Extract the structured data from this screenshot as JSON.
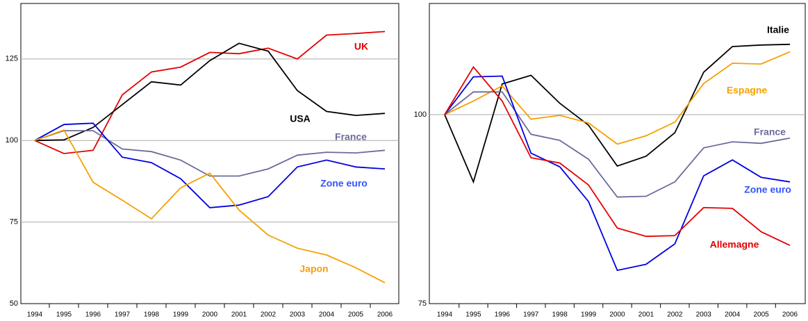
{
  "chart_data": [
    {
      "type": "line",
      "categories": [
        "1994",
        "1995",
        "1996",
        "1997",
        "1998",
        "1999",
        "2000",
        "2001",
        "2002",
        "2003",
        "2004",
        "2005",
        "2006"
      ],
      "ylim": [
        50,
        142
      ],
      "yticks": [
        50,
        75,
        100,
        125
      ],
      "grid": true,
      "series": [
        {
          "name": "UK",
          "color": "#e30000",
          "values": [
            100,
            96,
            97,
            114,
            121,
            122.5,
            127,
            126.6,
            128.3,
            125,
            132.3,
            132.8,
            133.4
          ]
        },
        {
          "name": "USA",
          "color": "#000000",
          "values": [
            100,
            100.2,
            104,
            111,
            118,
            117,
            124.5,
            129.8,
            127.4,
            115.3,
            108.9,
            107.7,
            108.3
          ]
        },
        {
          "name": "France",
          "color": "#6b6b9b",
          "values": [
            100,
            103,
            103,
            97.4,
            96.6,
            94,
            89.1,
            89.1,
            91.3,
            95.5,
            96.4,
            96.2,
            97
          ]
        },
        {
          "name": "Zone euro",
          "color": "#0000e0",
          "values": [
            100,
            104.9,
            105.3,
            94.9,
            93.2,
            88.3,
            79.4,
            80.2,
            82.8,
            91.9,
            94,
            91.9,
            91.3
          ]
        },
        {
          "name": "Japon",
          "color": "#f5a000",
          "values": [
            100,
            103.2,
            87.2,
            81.7,
            76,
            85.5,
            90,
            78.7,
            71,
            67,
            64.9,
            61,
            56.4
          ]
        }
      ]
    },
    {
      "type": "line",
      "categories": [
        "1994",
        "1995",
        "1996",
        "1997",
        "1998",
        "1999",
        "2000",
        "2001",
        "2002",
        "2003",
        "2004",
        "2005",
        "2006"
      ],
      "ylim": [
        75,
        114.7
      ],
      "yticks": [
        75,
        100
      ],
      "grid": true,
      "series": [
        {
          "name": "Italie",
          "color": "#000000",
          "values": [
            100,
            91.1,
            104.05,
            105.2,
            101.5,
            98.6,
            93.2,
            94.5,
            97.6,
            105.6,
            109,
            109.2,
            109.3
          ]
        },
        {
          "name": "Espagne",
          "color": "#f5a000",
          "values": [
            100,
            101.8,
            103.8,
            99.4,
            99.9,
            98.9,
            96.1,
            97.2,
            99,
            104.1,
            106.8,
            106.7,
            108.3
          ]
        },
        {
          "name": "France",
          "color": "#6b6b9b",
          "values": [
            100,
            103,
            103,
            97.4,
            96.6,
            94.1,
            89.1,
            89.2,
            91.1,
            95.6,
            96.4,
            96.2,
            96.9
          ]
        },
        {
          "name": "Zone euro",
          "color": "#0000e0",
          "values": [
            100,
            105,
            105.1,
            94.9,
            93.1,
            88.5,
            79.4,
            80.2,
            82.9,
            91.9,
            94,
            91.7,
            91.1
          ]
        },
        {
          "name": "Allemagne",
          "color": "#e30000",
          "values": [
            100,
            106.3,
            101.8,
            94.3,
            93.6,
            90.7,
            85,
            83.9,
            84,
            87.7,
            87.6,
            84.5,
            82.7
          ]
        }
      ]
    }
  ]
}
